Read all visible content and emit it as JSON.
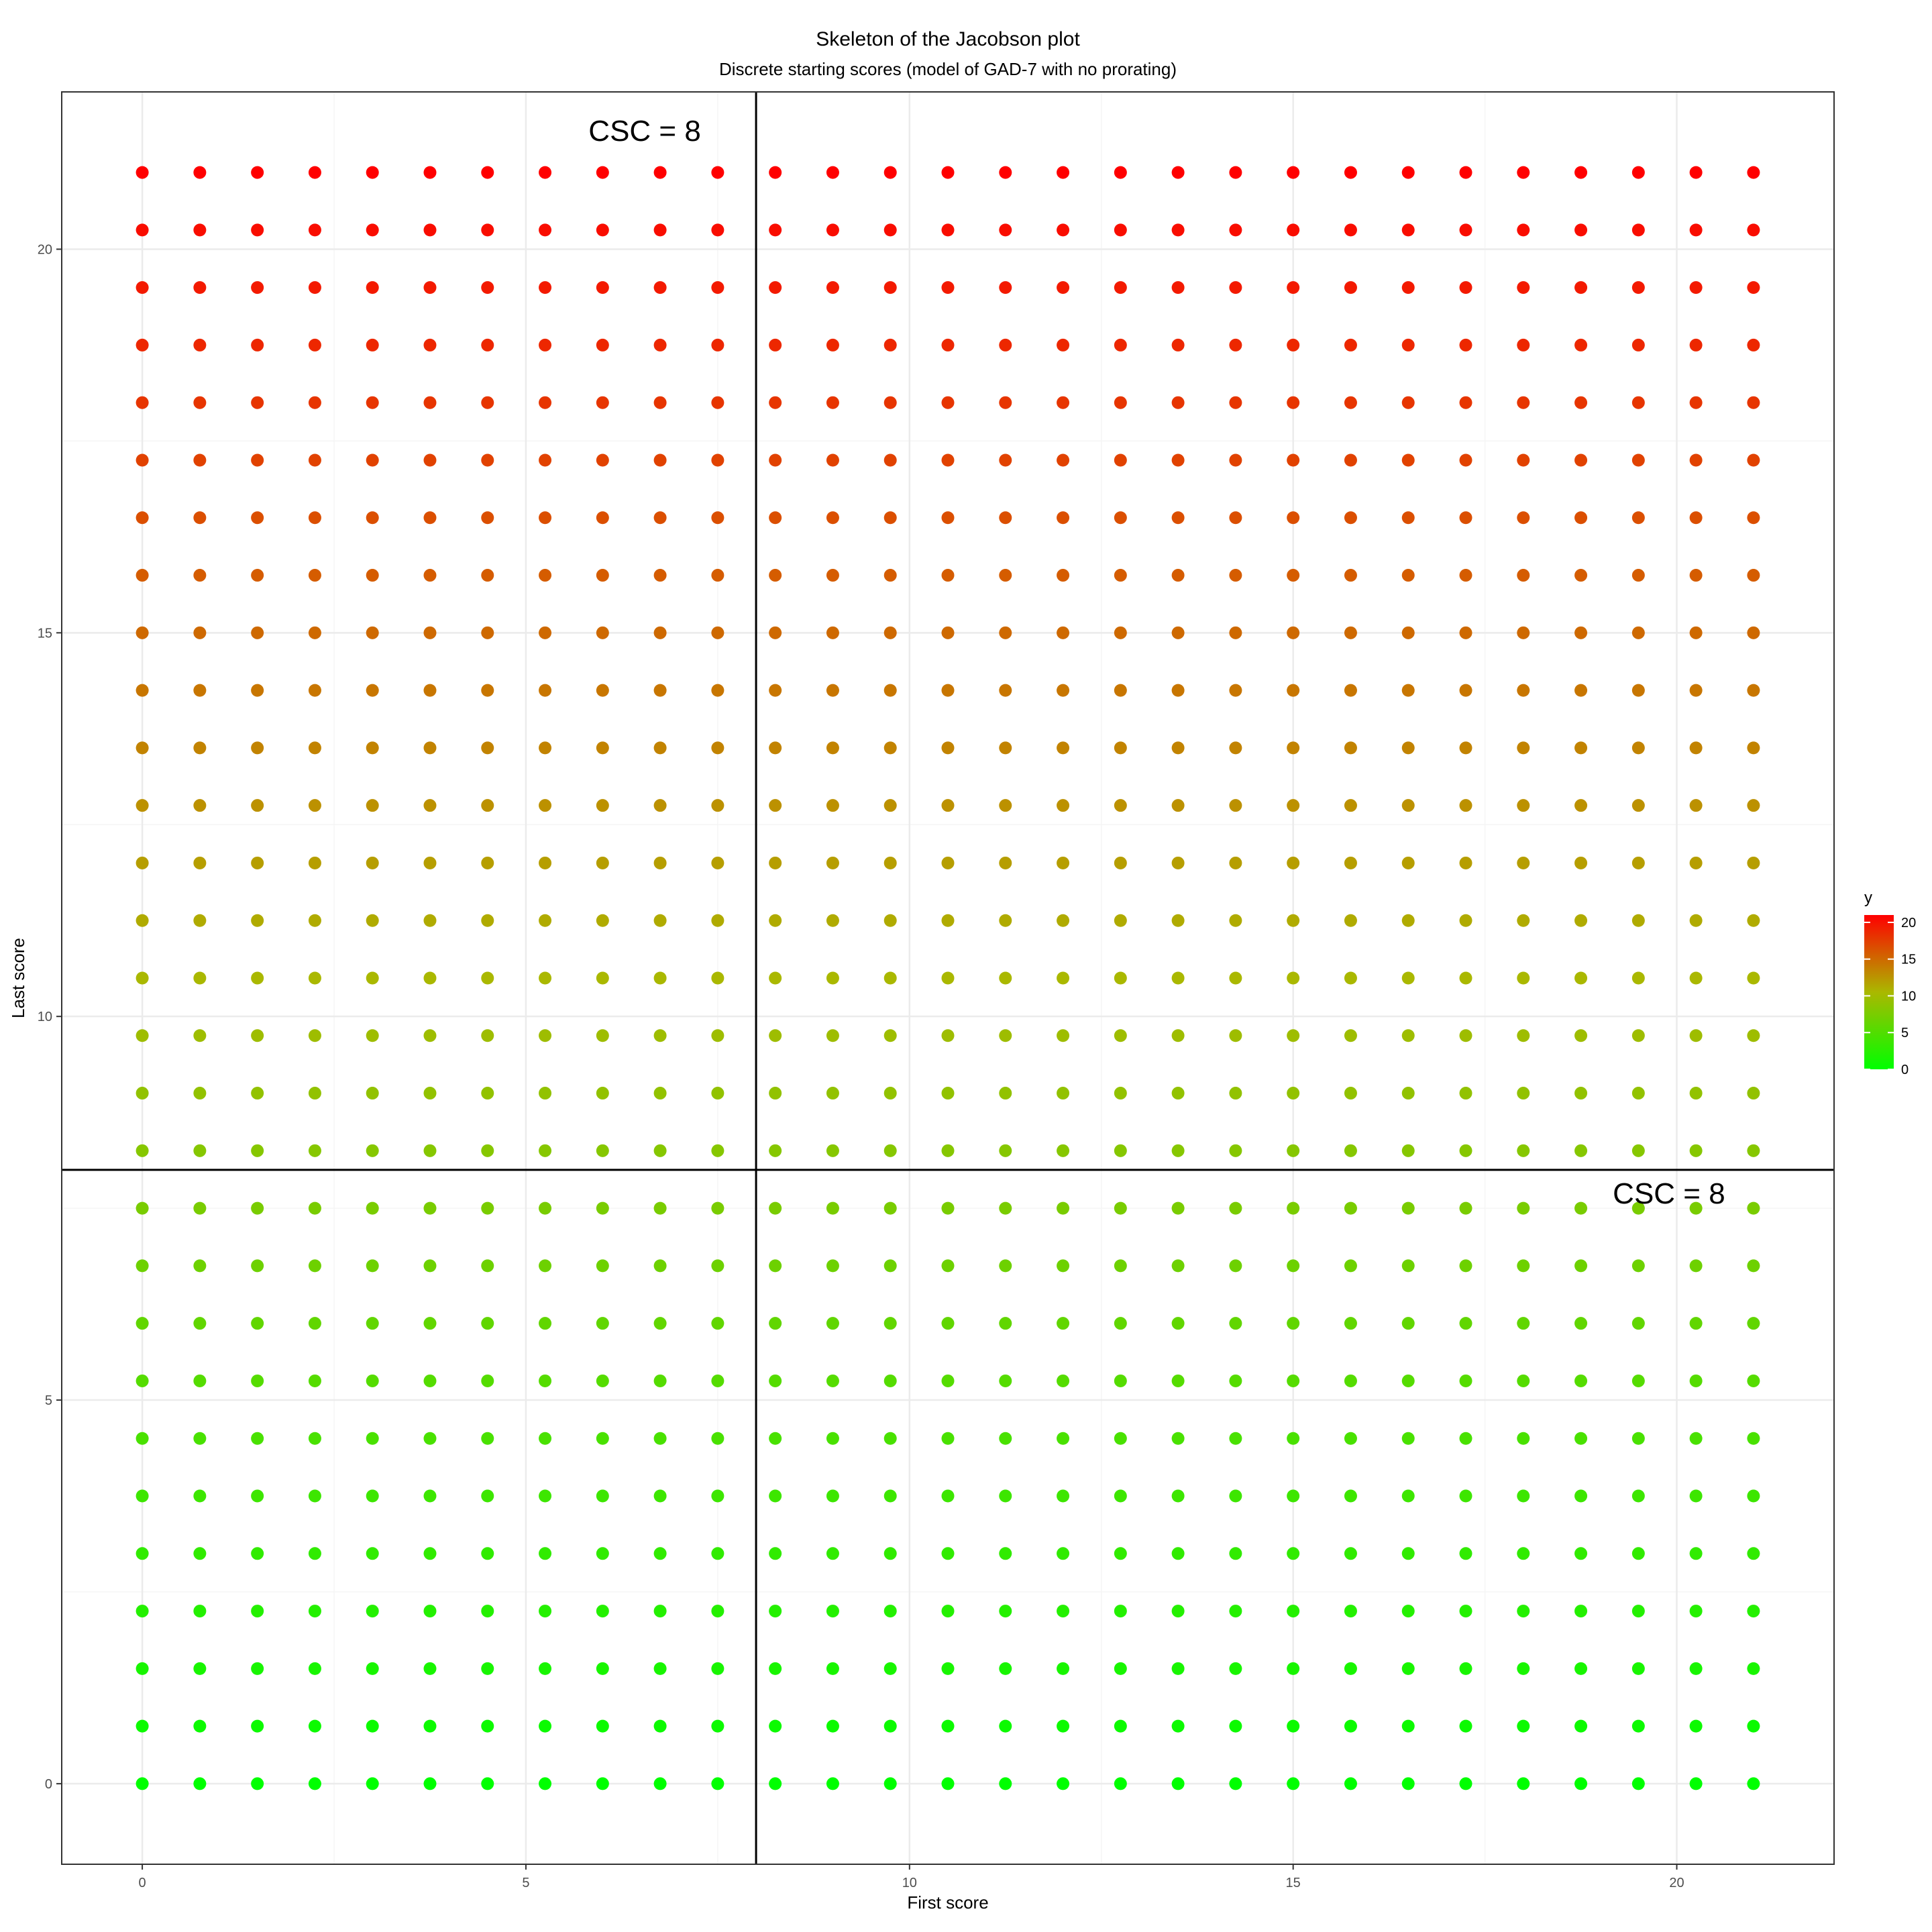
{
  "chart_data": {
    "type": "scatter",
    "title": "Skeleton of the Jacobson plot",
    "subtitle": "Discrete starting scores (model of GAD-7 with no prorating)",
    "xlabel": "First score",
    "ylabel": "Last score",
    "xlim": [
      -1.05,
      22.05
    ],
    "ylim": [
      -1.05,
      22.05
    ],
    "x_ticks": [
      0,
      5,
      10,
      15,
      20
    ],
    "y_ticks": [
      0,
      5,
      10,
      15,
      20
    ],
    "x_tick_labels": [
      "0",
      "5",
      "10",
      "15",
      "20"
    ],
    "y_tick_labels": [
      "0",
      "5",
      "10",
      "15",
      "20"
    ],
    "grid": true,
    "points": {
      "x_values": [
        0,
        0.75,
        1.5,
        2.25,
        3,
        3.75,
        4.5,
        5.25,
        6,
        6.75,
        7.5,
        8.25,
        9,
        9.75,
        10.5,
        11.25,
        12,
        12.75,
        13.5,
        14.25,
        15,
        15.75,
        16.5,
        17.25,
        18,
        18.75,
        19.5,
        20.25,
        21
      ],
      "y_values": [
        0,
        0.75,
        1.5,
        2.25,
        3,
        3.75,
        4.5,
        5.25,
        6,
        6.75,
        7.5,
        8.25,
        9,
        9.75,
        10.5,
        11.25,
        12,
        12.75,
        13.5,
        14.25,
        15,
        15.75,
        16.5,
        17.25,
        18,
        18.75,
        19.5,
        20.25,
        21
      ],
      "color_by": "y"
    },
    "reference_lines": [
      {
        "orientation": "vertical",
        "value": 8
      },
      {
        "orientation": "horizontal",
        "value": 8
      }
    ],
    "annotations": [
      {
        "text": "CSC = 8",
        "x": 6.8,
        "y": 21.55
      },
      {
        "text": "CSC = 8",
        "x": 20.15,
        "y": 7.7
      }
    ],
    "legend": {
      "title": "y",
      "position": "right",
      "type": "colorbar",
      "range": [
        0,
        21
      ],
      "low_color": "#00ff00",
      "high_color": "#ff0000",
      "ticks": [
        0,
        5,
        10,
        15,
        20
      ],
      "tick_labels": [
        "0",
        "5",
        "10",
        "15",
        "20"
      ]
    },
    "colors": {
      "panel_border": "#333333",
      "grid_major": "#ebebeb",
      "grid_minor": "#f5f5f5",
      "reference_line": "#000000"
    }
  }
}
